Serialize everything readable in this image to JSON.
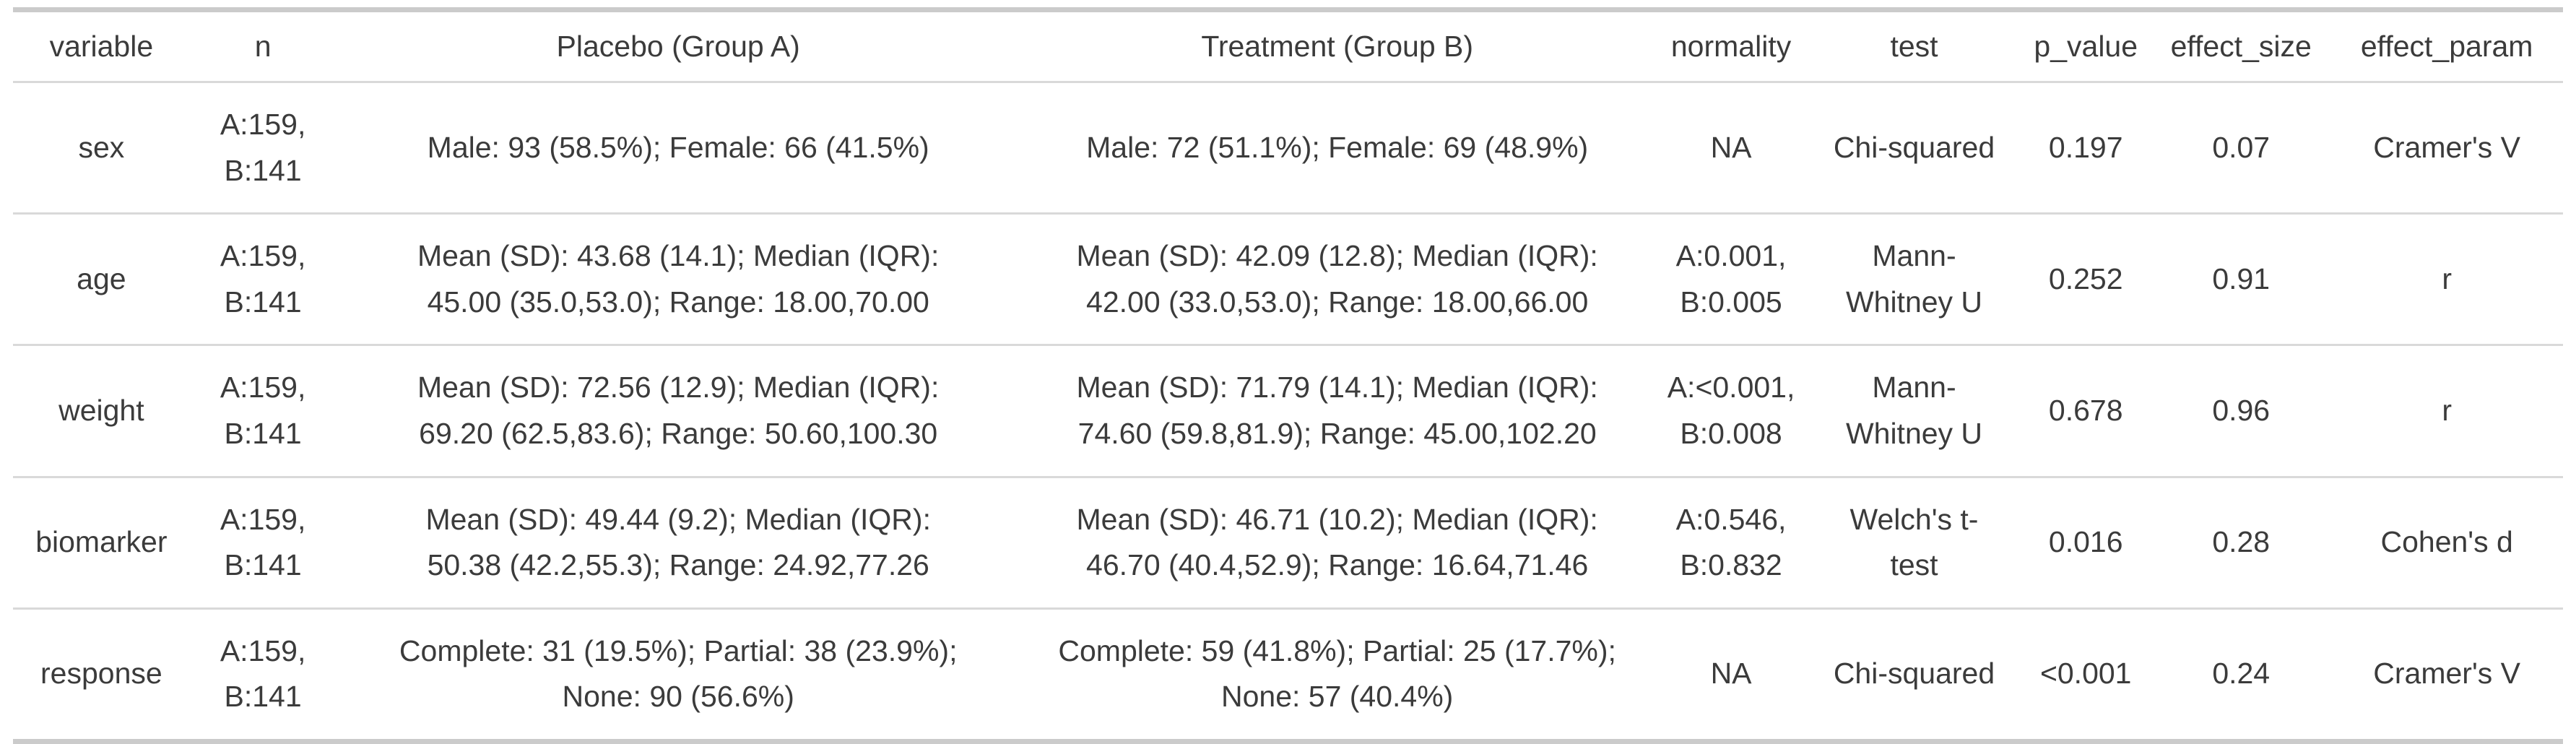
{
  "table": {
    "columns": [
      "variable",
      "n",
      "Placebo (Group A)",
      "Treatment (Group B)",
      "normality",
      "test",
      "p_value",
      "effect_size",
      "effect_param"
    ],
    "rows": [
      {
        "variable": "sex",
        "n": "A:159,\nB:141",
        "placebo": "Male: 93 (58.5%); Female: 66 (41.5%)",
        "treatment": "Male: 72 (51.1%); Female: 69 (48.9%)",
        "normality": "NA",
        "test": "Chi-squared",
        "p_value": "0.197",
        "effect_size": "0.07",
        "effect_param": "Cramer's V"
      },
      {
        "variable": "age",
        "n": "A:159,\nB:141",
        "placebo": "Mean (SD): 43.68 (14.1); Median (IQR):\n45.00 (35.0,53.0); Range: 18.00,70.00",
        "treatment": "Mean (SD): 42.09 (12.8); Median (IQR):\n42.00 (33.0,53.0); Range: 18.00,66.00",
        "normality": "A:0.001,\nB:0.005",
        "test": "Mann-\nWhitney U",
        "p_value": "0.252",
        "effect_size": "0.91",
        "effect_param": "r"
      },
      {
        "variable": "weight",
        "n": "A:159,\nB:141",
        "placebo": "Mean (SD): 72.56 (12.9); Median (IQR):\n69.20 (62.5,83.6); Range: 50.60,100.30",
        "treatment": "Mean (SD): 71.79 (14.1); Median (IQR):\n74.60 (59.8,81.9); Range: 45.00,102.20",
        "normality": "A:<0.001,\nB:0.008",
        "test": "Mann-\nWhitney U",
        "p_value": "0.678",
        "effect_size": "0.96",
        "effect_param": "r"
      },
      {
        "variable": "biomarker",
        "n": "A:159,\nB:141",
        "placebo": "Mean (SD): 49.44 (9.2); Median (IQR):\n50.38 (42.2,55.3); Range: 24.92,77.26",
        "treatment": "Mean (SD): 46.71 (10.2); Median (IQR):\n46.70 (40.4,52.9); Range: 16.64,71.46",
        "normality": "A:0.546,\nB:0.832",
        "test": "Welch's t-\ntest",
        "p_value": "0.016",
        "effect_size": "0.28",
        "effect_param": "Cohen's d"
      },
      {
        "variable": "response",
        "n": "A:159,\nB:141",
        "placebo": "Complete: 31 (19.5%); Partial: 38 (23.9%);\nNone: 90 (56.6%)",
        "treatment": "Complete: 59 (41.8%); Partial: 25 (17.7%);\nNone: 57 (40.4%)",
        "normality": "NA",
        "test": "Chi-squared",
        "p_value": "<0.001",
        "effect_size": "0.24",
        "effect_param": "Cramer's V"
      }
    ]
  },
  "colors": {
    "text": "#3b3b3b",
    "border_thick": "#cbcbcb",
    "border_thin": "#d9d9d9",
    "background": "#ffffff"
  },
  "chart_data": {
    "type": "table",
    "columns": [
      "variable",
      "n",
      "Placebo (Group A)",
      "Treatment (Group B)",
      "normality",
      "test",
      "p_value",
      "effect_size",
      "effect_param"
    ],
    "rows": [
      [
        "sex",
        "A:159, B:141",
        "Male: 93 (58.5%); Female: 66 (41.5%)",
        "Male: 72 (51.1%); Female: 69 (48.9%)",
        "NA",
        "Chi-squared",
        "0.197",
        "0.07",
        "Cramer's V"
      ],
      [
        "age",
        "A:159, B:141",
        "Mean (SD): 43.68 (14.1); Median (IQR): 45.00 (35.0,53.0); Range: 18.00,70.00",
        "Mean (SD): 42.09 (12.8); Median (IQR): 42.00 (33.0,53.0); Range: 18.00,66.00",
        "A:0.001, B:0.005",
        "Mann-Whitney U",
        "0.252",
        "0.91",
        "r"
      ],
      [
        "weight",
        "A:159, B:141",
        "Mean (SD): 72.56 (12.9); Median (IQR): 69.20 (62.5,83.6); Range: 50.60,100.30",
        "Mean (SD): 71.79 (14.1); Median (IQR): 74.60 (59.8,81.9); Range: 45.00,102.20",
        "A:<0.001, B:0.008",
        "Mann-Whitney U",
        "0.678",
        "0.96",
        "r"
      ],
      [
        "biomarker",
        "A:159, B:141",
        "Mean (SD): 49.44 (9.2); Median (IQR): 50.38 (42.2,55.3); Range: 24.92,77.26",
        "Mean (SD): 46.71 (10.2); Median (IQR): 46.70 (40.4,52.9); Range: 16.64,71.46",
        "A:0.546, B:0.832",
        "Welch's t-test",
        "0.016",
        "0.28",
        "Cohen's d"
      ],
      [
        "response",
        "A:159, B:141",
        "Complete: 31 (19.5%); Partial: 38 (23.9%); None: 90 (56.6%)",
        "Complete: 59 (41.8%); Partial: 25 (17.7%); None: 57 (40.4%)",
        "NA",
        "Chi-squared",
        "<0.001",
        "0.24",
        "Cramer's V"
      ]
    ]
  }
}
